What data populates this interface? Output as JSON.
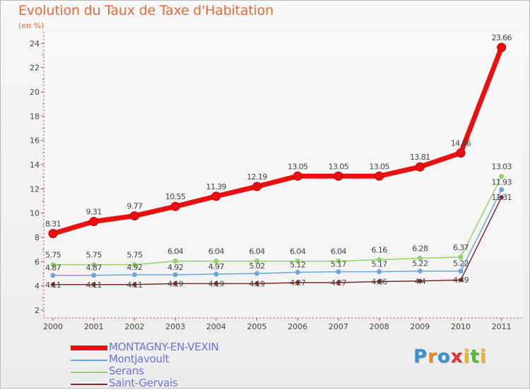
{
  "title": "Evolution du Taux de Taxe d'Habitation",
  "subtitle": "(en %)",
  "logo": {
    "text": "Proxiti",
    "letters": [
      {
        "ch": "P",
        "color": "#3a8fd6"
      },
      {
        "ch": "r",
        "color": "#f08c1a"
      },
      {
        "ch": "o",
        "color": "#3a8fd6"
      },
      {
        "ch": "x",
        "color": "#e83030"
      },
      {
        "ch": "i",
        "color": "#f0b51a"
      },
      {
        "ch": "t",
        "color": "#58b83a"
      },
      {
        "ch": "i",
        "color": "#f0b51a"
      }
    ]
  },
  "chart_data": {
    "type": "line",
    "title": "Evolution du Taux de Taxe d'Habitation",
    "subtitle": "(en %)",
    "xlabel": "",
    "ylabel": "",
    "categories": [
      "2000",
      "2001",
      "2002",
      "2003",
      "2004",
      "2005",
      "2006",
      "2007",
      "2008",
      "2009",
      "2010",
      "2011"
    ],
    "ylim": [
      2,
      25
    ],
    "yticks": [
      2,
      4,
      6,
      8,
      10,
      12,
      14,
      16,
      18,
      20,
      22,
      24
    ],
    "grid": false,
    "legend": "bottom-left",
    "series": [
      {
        "name": "MONTAGNY-EN-VEXIN",
        "color": "#e81010",
        "values": [
          8.31,
          9.31,
          9.77,
          10.55,
          11.39,
          12.19,
          13.05,
          13.05,
          13.05,
          13.81,
          14.96,
          23.66
        ],
        "labels": [
          "8.31",
          "9.31",
          "9.77",
          "10.55",
          "11.39",
          "12.19",
          "13.05",
          "13.05",
          "13.05",
          "13.81",
          "14.96",
          "23.66"
        ]
      },
      {
        "name": "Montjavoult",
        "color": "#6fa6d9",
        "values": [
          4.87,
          4.87,
          4.92,
          4.92,
          4.97,
          5.02,
          5.12,
          5.17,
          5.17,
          5.22,
          5.22,
          11.93
        ],
        "labels": [
          "4.87",
          "4.87",
          "4.92",
          "4.92",
          "4.97",
          "5.02",
          "5.12",
          "5.17",
          "5.17",
          "5.22",
          "5.22",
          "11.93"
        ]
      },
      {
        "name": "Serans",
        "color": "#8fd46a",
        "values": [
          5.75,
          5.75,
          5.75,
          6.04,
          6.04,
          6.04,
          6.04,
          6.04,
          6.16,
          6.28,
          6.37,
          13.03
        ],
        "labels": [
          "5.75",
          "5.75",
          "5.75",
          "6.04",
          "6.04",
          "6.04",
          "6.04",
          "6.04",
          "6.16",
          "6.28",
          "6.37",
          "13.03"
        ]
      },
      {
        "name": "Saint-Gervais",
        "color": "#7a2a2a",
        "values": [
          4.11,
          4.11,
          4.11,
          4.19,
          4.19,
          4.19,
          4.27,
          4.27,
          4.36,
          4.4,
          4.49,
          11.31
        ],
        "labels": [
          "4.11",
          "4.11",
          "4.11",
          "4.19",
          "4.19",
          "4.19",
          "4.27",
          "4.27",
          "4.36",
          "4.4",
          "4.49",
          "11.31"
        ]
      }
    ]
  }
}
